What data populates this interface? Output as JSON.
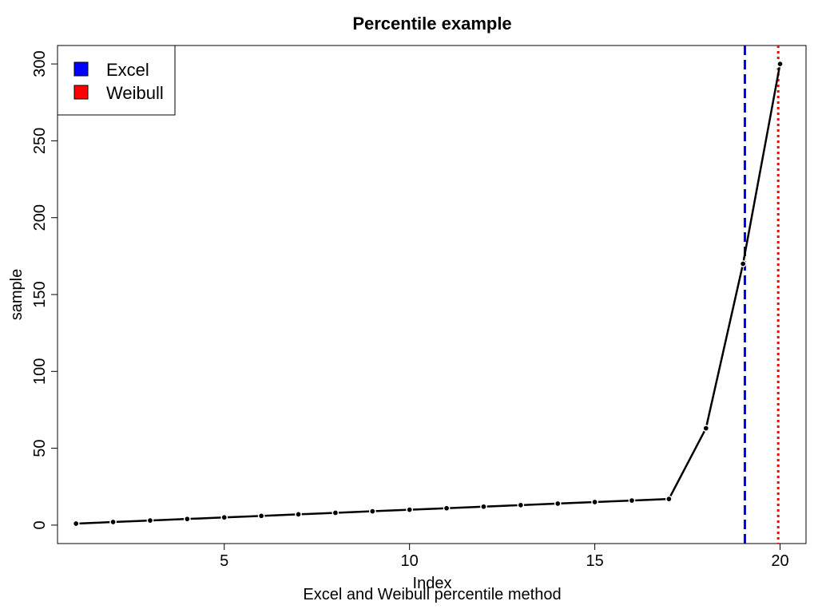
{
  "chart_data": {
    "type": "line",
    "title": "Percentile example",
    "subtitle": "Excel and Weibull percentile method",
    "xlabel": "Index",
    "ylabel": "sample",
    "xlim": [
      0.5,
      20.7
    ],
    "ylim": [
      -12,
      312
    ],
    "xticks": [
      5,
      10,
      15,
      20
    ],
    "yticks": [
      0,
      50,
      100,
      150,
      200,
      250,
      300
    ],
    "grid": false,
    "legend_position": "top-left",
    "series": [
      {
        "values_x": [
          1,
          2,
          3,
          4,
          5,
          6,
          7,
          8,
          9,
          10,
          11,
          12,
          13,
          14,
          15,
          16,
          17,
          18,
          19,
          20
        ],
        "values_y": [
          1,
          2,
          3,
          4,
          5,
          6,
          7,
          8,
          9,
          10,
          11,
          12,
          13,
          14,
          15,
          16,
          17,
          63,
          170,
          300
        ],
        "color": "#000000",
        "markers": true
      }
    ],
    "reference_lines": [
      {
        "name": "Excel",
        "x": 19.05,
        "color": "#0000ff",
        "style": "dashed"
      },
      {
        "name": "Weibull",
        "x": 19.95,
        "color": "#ff0000",
        "style": "dotted"
      }
    ],
    "legend": [
      {
        "label": "Excel",
        "color": "#0000ff"
      },
      {
        "label": "Weibull",
        "color": "#ff0000"
      }
    ]
  }
}
